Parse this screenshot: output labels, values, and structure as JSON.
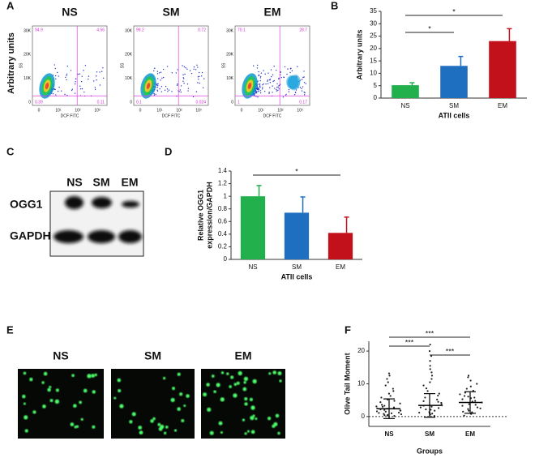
{
  "panel_labels": [
    "A",
    "B",
    "C",
    "D",
    "E",
    "F"
  ],
  "flow": {
    "titles": [
      "NS",
      "SM",
      "EM"
    ],
    "y_label": "Arbitrary units",
    "x_axis_label": "DCF FITC",
    "y_axis_label": "SS",
    "yticks": [
      "30K",
      "20K",
      "10K",
      "0"
    ],
    "xticks": [
      "0",
      "10¹",
      "10²",
      "10³"
    ],
    "quadrant_values": [
      [
        "94.9",
        "4.56",
        "0.39",
        "0.11"
      ],
      [
        "99.2",
        "0.72",
        "0.1",
        "0.024"
      ],
      [
        "70.1",
        "28.7",
        "1",
        "0.17"
      ]
    ]
  },
  "blot": {
    "columns": [
      "NS",
      "SM",
      "EM"
    ],
    "rows": [
      "OGG1",
      "GAPDH"
    ]
  },
  "micro": {
    "titles": [
      "NS",
      "SM",
      "EM"
    ]
  },
  "chart_data": [
    {
      "type": "bar",
      "categories": [
        "NS",
        "SM",
        "EM"
      ],
      "values": [
        5.2,
        13,
        23
      ],
      "errors": [
        1,
        3.8,
        5
      ],
      "colors": [
        "#21b04b",
        "#1f6fc1",
        "#c3111b"
      ],
      "ylim": [
        0,
        35
      ],
      "yticks": [
        0,
        5,
        10,
        15,
        20,
        25,
        30,
        35
      ],
      "y_label": [
        "Arbitrary units"
      ],
      "x_label": "ATII cells",
      "significance": [
        {
          "label": "*",
          "pair": [
            "NS",
            "EM"
          ]
        },
        {
          "label": "*",
          "pair": [
            "NS",
            "SM"
          ]
        }
      ]
    },
    {
      "type": "bar",
      "categories": [
        "NS",
        "SM",
        "EM"
      ],
      "values": [
        1,
        0.74,
        0.42
      ],
      "errors": [
        0.17,
        0.25,
        0.25
      ],
      "colors": [
        "#21b04b",
        "#1f6fc1",
        "#c3111b"
      ],
      "ylim": [
        0,
        1.4
      ],
      "yticks": [
        0,
        0.2,
        0.4,
        0.6,
        0.8,
        1,
        1.2,
        1.4
      ],
      "y_label": [
        "Relative OGG1",
        "expression/GAPDH"
      ],
      "x_label": "ATII cells",
      "significance": [
        {
          "label": "*",
          "pair": [
            "NS",
            "EM"
          ]
        }
      ]
    },
    {
      "type": "strip",
      "categories": [
        "NS",
        "SM",
        "EM"
      ],
      "color": "#222",
      "values": [
        [
          0.2,
          0.5,
          0.8,
          1,
          1.2,
          1.5,
          1.8,
          2,
          2.2,
          2.5,
          2.8,
          3,
          3.3,
          3.6,
          4,
          4.4,
          4.8,
          5.2,
          5.8,
          6.3,
          7,
          7.8,
          8.5,
          9.5,
          10.5,
          11.5,
          12.5,
          13.2,
          0.4,
          1.1,
          1.6,
          2.4,
          3.1,
          0.7,
          0.3,
          1.9
        ],
        [
          0.2,
          0.6,
          1,
          1.4,
          1.8,
          2.2,
          2.6,
          3,
          3.4,
          3.8,
          4.2,
          4.7,
          5.2,
          5.8,
          6.4,
          7,
          7.8,
          8.6,
          9.5,
          10.5,
          11.5,
          12.5,
          13.5,
          14.5,
          15.5,
          17,
          18.5,
          20,
          22,
          0.9,
          2.1,
          3.3,
          4.5,
          1.2,
          2.8
        ],
        [
          0.3,
          0.8,
          1.3,
          1.8,
          2.3,
          2.8,
          3.3,
          3.8,
          4.3,
          4.8,
          5.3,
          5.8,
          6.3,
          6.8,
          7.3,
          7.9,
          8.5,
          9.2,
          10,
          11,
          12,
          12.5,
          2.5,
          3.6,
          4.6,
          5.6,
          1.5,
          6.1
        ]
      ],
      "mean": [
        2.4,
        3.4,
        4.3
      ],
      "sd": [
        3,
        3.6,
        3.3
      ],
      "ylim": [
        -3,
        23
      ],
      "yticks": [
        0,
        10,
        20
      ],
      "zero_line": true,
      "y_label": [
        "Olive Tail Moment"
      ],
      "x_label": "Groups",
      "significance": [
        {
          "label": "***",
          "pair": [
            "NS",
            "EM"
          ]
        },
        {
          "label": "***",
          "pair": [
            "NS",
            "SM"
          ]
        },
        {
          "label": "***",
          "pair": [
            "SM",
            "EM"
          ]
        }
      ]
    }
  ]
}
